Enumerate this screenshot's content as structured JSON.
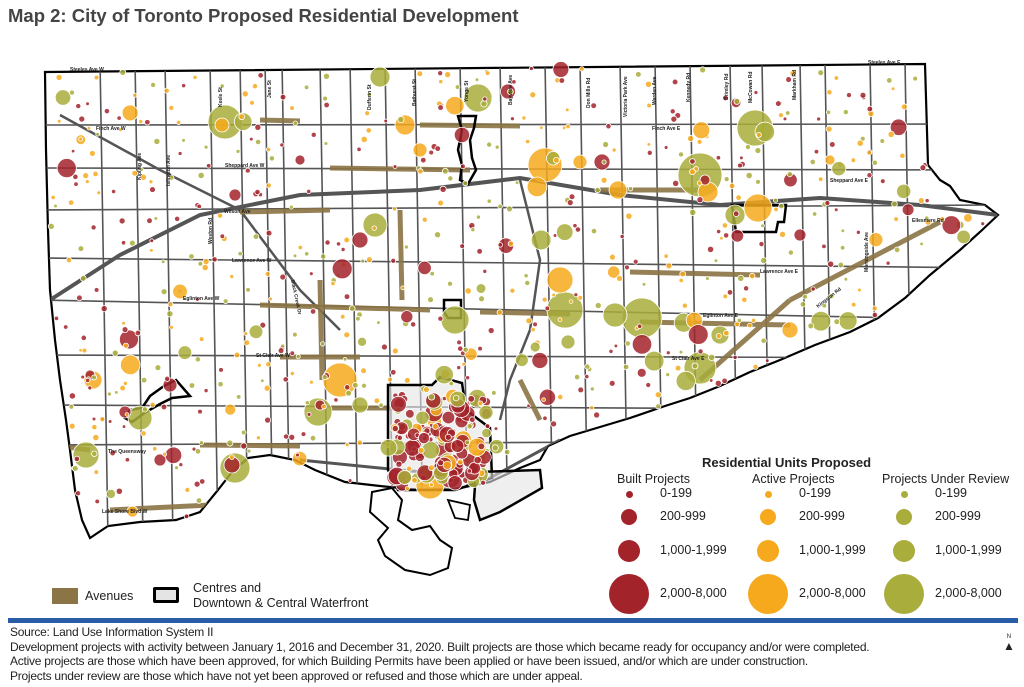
{
  "title": "Map 2: City of Toronto Proposed Residential Development",
  "colors": {
    "built": "#a3232a",
    "active": "#f6a91c",
    "review": "#a9ad3b",
    "avenues": "#8b7445",
    "centres_fill": "#e4e4e4",
    "rule": "#2a5da8"
  },
  "streets": {
    "steeles_w": "Steeles Ave W",
    "steeles_e": "Steeles Ave E",
    "finch_w": "Finch Ave W",
    "finch_e": "Finch Ave E",
    "sheppard_w": "Sheppard Ave W",
    "sheppard_e": "Sheppard Ave E",
    "wilson": "Wilson Ave",
    "lawrence_w": "Lawrence Ave W",
    "lawrence_e": "Lawrence Ave E",
    "eglinton_w": "Eglinton Ave W",
    "eglinton_e": "Eglinton Ave E",
    "st_clair_w": "St Clair Ave W",
    "st_clair_e": "St Clair Ave E",
    "queensway": "The Queensway",
    "lake_shore": "Lake Shore Blvd W",
    "ellesmere": "Ellesmere Rd",
    "kingston": "Kingston Rd",
    "morningside": "Morningside Ave",
    "kipling": "Kipling Ave",
    "islington": "Islington Ave",
    "keele": "Keele St",
    "jane": "Jane St",
    "weston": "Weston Rd",
    "black_creek": "Black Creek Dr",
    "dufferin": "Dufferin St",
    "bathurst": "Bathurst St",
    "yonge": "Yonge St",
    "bayview": "Bayview Ave",
    "don_mills": "Don Mills Rd",
    "victoria_park": "Victoria Park Ave",
    "warden": "Warden Ave",
    "kennedy": "Kennedy Rd",
    "brimley": "Brimley Rd",
    "mccowan": "McCowan Rd",
    "markham": "Markham Rd"
  },
  "legend": {
    "title": "Residential Units Proposed",
    "columns": [
      {
        "label": "Built Projects",
        "type": "built"
      },
      {
        "label": "Active Projects",
        "type": "active"
      },
      {
        "label": "Projects Under Review",
        "type": "review"
      }
    ],
    "ranges": [
      "0-199",
      "200-999",
      "1,000-1,999",
      "2,000-8,000"
    ],
    "avenues_label": "Avenues",
    "centres_label_1": "Centres and",
    "centres_label_2": "Downtown & Central Waterfront"
  },
  "footer": {
    "source": "Source: Land Use Information System II",
    "line1": "Development projects with activity between January 1, 2016 and December 31, 2020. Built projects are those which became ready for occupancy and/or were completed.",
    "line2": "Active projects are those which have been approved, for which Building Permits have been applied or have been issued, and/or which are under construction.",
    "line3": "Projects under review are those which have not yet been approved or refused and those which are under appeal.",
    "north_label": "N"
  }
}
